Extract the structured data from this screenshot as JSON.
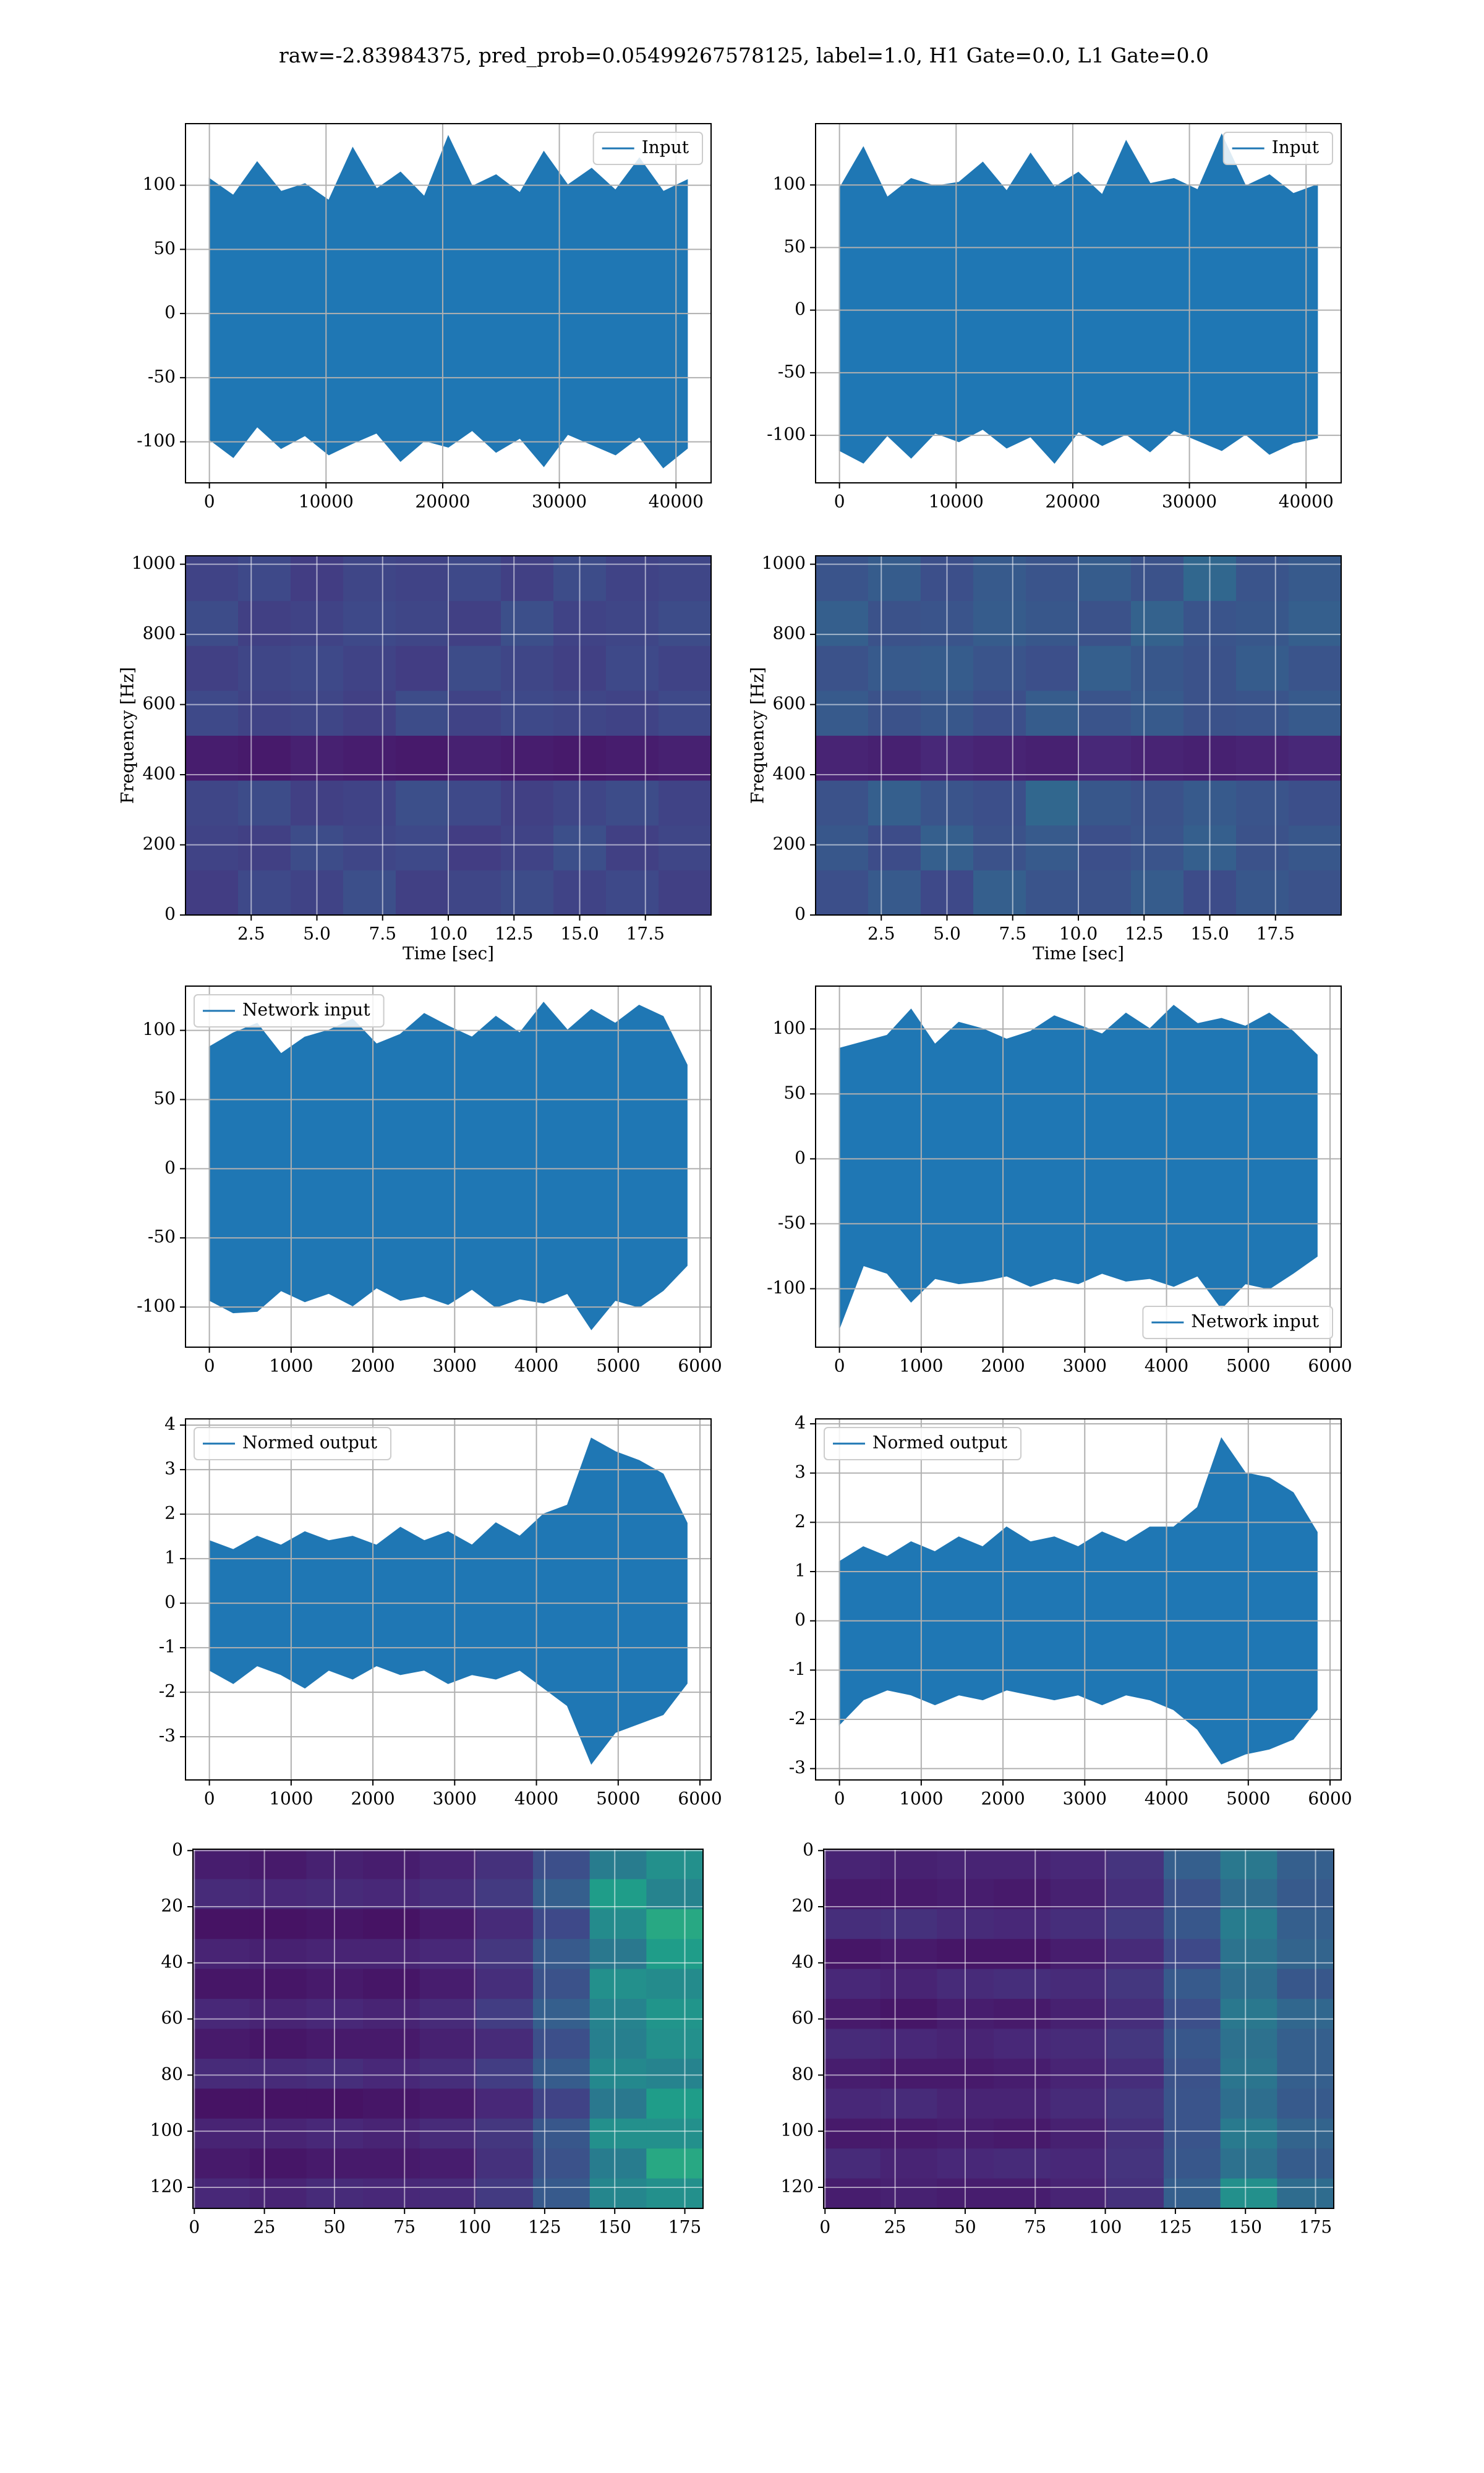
{
  "title": "raw=-2.83984375, pred_prob=0.05499267578125, label=1.0, H1 Gate=0.0, L1 Gate=0.0",
  "chart_data": [
    {
      "type": "band",
      "xlim": [
        -2048,
        43008
      ],
      "ylim": [
        -132,
        148
      ],
      "xticks": [
        0,
        10000,
        20000,
        30000,
        40000
      ],
      "yticks": [
        -100,
        -50,
        0,
        50,
        100
      ],
      "grid": true,
      "legend": "upper right",
      "series": [
        {
          "name": "Input",
          "color": "#1f77b4",
          "x": [
            0,
            2048,
            4096,
            6144,
            8192,
            10240,
            12288,
            14336,
            16384,
            18432,
            20480,
            22528,
            24576,
            26624,
            28672,
            30720,
            32768,
            34816,
            36864,
            38912,
            40960
          ],
          "upper": [
            105,
            92,
            118,
            95,
            101,
            88,
            129,
            97,
            110,
            91,
            138,
            99,
            108,
            94,
            126,
            100,
            113,
            96,
            121,
            95,
            104
          ],
          "lower": [
            -98,
            -112,
            -88,
            -105,
            -95,
            -110,
            -101,
            -93,
            -115,
            -99,
            -104,
            -91,
            -108,
            -97,
            -119,
            -94,
            -102,
            -110,
            -96,
            -120,
            -105
          ]
        }
      ]
    },
    {
      "type": "band",
      "xlim": [
        -2048,
        43008
      ],
      "ylim": [
        -138,
        149
      ],
      "xticks": [
        0,
        10000,
        20000,
        30000,
        40000
      ],
      "yticks": [
        -100,
        -50,
        0,
        50,
        100
      ],
      "grid": true,
      "legend": "upper right",
      "series": [
        {
          "name": "Input",
          "color": "#1f77b4",
          "x": [
            0,
            2048,
            4096,
            6144,
            8192,
            10240,
            12288,
            14336,
            16384,
            18432,
            20480,
            22528,
            24576,
            26624,
            28672,
            30720,
            32768,
            34816,
            36864,
            38912,
            40960
          ],
          "upper": [
            97,
            130,
            90,
            105,
            99,
            102,
            118,
            95,
            125,
            98,
            110,
            92,
            135,
            101,
            105,
            96,
            140,
            99,
            108,
            93,
            100
          ],
          "lower": [
            -112,
            -122,
            -100,
            -118,
            -98,
            -105,
            -95,
            -110,
            -101,
            -122,
            -97,
            -108,
            -99,
            -113,
            -96,
            -104,
            -112,
            -99,
            -115,
            -106,
            -102
          ]
        }
      ]
    },
    {
      "type": "heatmap",
      "origin": "lower",
      "colormap": "viridis",
      "clim": [
        0,
        1
      ],
      "xlim": [
        0,
        20
      ],
      "ylim": [
        0,
        1024
      ],
      "xticks": [
        2.5,
        {
          "value": 5,
          "label": "5.0"
        },
        7.5,
        {
          "value": 10,
          "label": "10.0"
        },
        12.5,
        {
          "value": 15,
          "label": "15.0"
        },
        17.5
      ],
      "yticks": [
        0,
        200,
        400,
        600,
        800,
        1000
      ],
      "grid": true,
      "xlabel": "Time [sec]",
      "ylabel": "Frequency [Hz]",
      "z": [
        [
          0.18,
          0.22,
          0.2,
          0.24,
          0.19,
          0.21,
          0.23,
          0.2,
          0.22,
          0.19
        ],
        [
          0.2,
          0.19,
          0.23,
          0.21,
          0.22,
          0.18,
          0.2,
          0.24,
          0.19,
          0.21
        ],
        [
          0.21,
          0.23,
          0.19,
          0.2,
          0.24,
          0.22,
          0.19,
          0.21,
          0.23,
          0.2
        ],
        [
          0.08,
          0.07,
          0.09,
          0.08,
          0.07,
          0.09,
          0.08,
          0.07,
          0.08,
          0.09
        ],
        [
          0.22,
          0.2,
          0.21,
          0.19,
          0.23,
          0.2,
          0.22,
          0.21,
          0.2,
          0.22
        ],
        [
          0.19,
          0.21,
          0.22,
          0.2,
          0.18,
          0.23,
          0.21,
          0.19,
          0.22,
          0.2
        ],
        [
          0.23,
          0.19,
          0.2,
          0.22,
          0.21,
          0.19,
          0.24,
          0.2,
          0.21,
          0.23
        ],
        [
          0.2,
          0.22,
          0.18,
          0.21,
          0.2,
          0.22,
          0.19,
          0.23,
          0.2,
          0.21
        ]
      ]
    },
    {
      "type": "heatmap",
      "origin": "lower",
      "colormap": "viridis",
      "clim": [
        0,
        1
      ],
      "xlim": [
        0,
        20
      ],
      "ylim": [
        0,
        1024
      ],
      "xticks": [
        2.5,
        {
          "value": 5,
          "label": "5.0"
        },
        7.5,
        {
          "value": 10,
          "label": "10.0"
        },
        12.5,
        {
          "value": 15,
          "label": "15.0"
        },
        17.5
      ],
      "yticks": [
        0,
        200,
        400,
        600,
        800,
        1000
      ],
      "grid": true,
      "xlabel": "Time [sec]",
      "ylabel": "Frequency [Hz]",
      "z": [
        [
          0.24,
          0.28,
          0.22,
          0.3,
          0.26,
          0.25,
          0.29,
          0.23,
          0.27,
          0.25
        ],
        [
          0.27,
          0.23,
          0.3,
          0.25,
          0.28,
          0.24,
          0.26,
          0.3,
          0.25,
          0.27
        ],
        [
          0.25,
          0.3,
          0.26,
          0.24,
          0.33,
          0.27,
          0.25,
          0.28,
          0.26,
          0.24
        ],
        [
          0.1,
          0.09,
          0.11,
          0.1,
          0.09,
          0.11,
          0.1,
          0.09,
          0.1,
          0.11
        ],
        [
          0.28,
          0.25,
          0.27,
          0.24,
          0.29,
          0.26,
          0.28,
          0.25,
          0.26,
          0.28
        ],
        [
          0.25,
          0.28,
          0.29,
          0.26,
          0.24,
          0.3,
          0.27,
          0.25,
          0.29,
          0.26
        ],
        [
          0.3,
          0.25,
          0.26,
          0.29,
          0.27,
          0.25,
          0.31,
          0.26,
          0.27,
          0.3
        ],
        [
          0.26,
          0.29,
          0.24,
          0.28,
          0.26,
          0.29,
          0.25,
          0.33,
          0.26,
          0.28
        ]
      ]
    },
    {
      "type": "band",
      "xlim": [
        -292,
        6136
      ],
      "ylim": [
        -129,
        132
      ],
      "xticks": [
        0,
        1000,
        2000,
        3000,
        4000,
        5000,
        6000
      ],
      "yticks": [
        -100,
        -50,
        0,
        50,
        100
      ],
      "grid": true,
      "legend": "upper left",
      "series": [
        {
          "name": "Network input",
          "color": "#1f77b4",
          "x": [
            0,
            292,
            584,
            876,
            1168,
            1460,
            1752,
            2044,
            2336,
            2628,
            2920,
            3212,
            3504,
            3796,
            4088,
            4380,
            4672,
            4964,
            5256,
            5548,
            5840
          ],
          "upper": [
            88,
            98,
            105,
            83,
            95,
            100,
            108,
            90,
            97,
            112,
            103,
            95,
            110,
            98,
            120,
            100,
            115,
            105,
            118,
            110,
            75
          ],
          "lower": [
            -95,
            -104,
            -103,
            -88,
            -96,
            -90,
            -99,
            -86,
            -95,
            -92,
            -98,
            -87,
            -100,
            -94,
            -97,
            -90,
            -116,
            -95,
            -100,
            -88,
            -70
          ]
        }
      ]
    },
    {
      "type": "band",
      "xlim": [
        -292,
        6136
      ],
      "ylim": [
        -145,
        133
      ],
      "xticks": [
        0,
        1000,
        2000,
        3000,
        4000,
        5000,
        6000
      ],
      "yticks": [
        -100,
        -50,
        0,
        50,
        100
      ],
      "grid": true,
      "legend": "lower right",
      "series": [
        {
          "name": "Network input",
          "color": "#1f77b4",
          "x": [
            0,
            292,
            584,
            876,
            1168,
            1460,
            1752,
            2044,
            2336,
            2628,
            2920,
            3212,
            3504,
            3796,
            4088,
            4380,
            4672,
            4964,
            5256,
            5548,
            5840
          ],
          "upper": [
            85,
            90,
            95,
            115,
            88,
            105,
            100,
            92,
            98,
            110,
            103,
            96,
            112,
            100,
            118,
            104,
            108,
            102,
            112,
            98,
            80
          ],
          "lower": [
            -130,
            -82,
            -88,
            -110,
            -92,
            -96,
            -94,
            -90,
            -98,
            -92,
            -96,
            -88,
            -94,
            -92,
            -98,
            -90,
            -115,
            -96,
            -100,
            -88,
            -75
          ]
        }
      ]
    },
    {
      "type": "band",
      "xlim": [
        -292,
        6136
      ],
      "ylim": [
        -3.97,
        4.14
      ],
      "xticks": [
        0,
        1000,
        2000,
        3000,
        4000,
        5000,
        6000
      ],
      "yticks": [
        -3,
        -2,
        -1,
        0,
        1,
        2,
        3,
        4
      ],
      "grid": true,
      "legend": "upper left",
      "series": [
        {
          "name": "Normed output",
          "color": "#1f77b4",
          "x": [
            0,
            292,
            584,
            876,
            1168,
            1460,
            1752,
            2044,
            2336,
            2628,
            2920,
            3212,
            3504,
            3796,
            4088,
            4380,
            4672,
            4964,
            5256,
            5548,
            5840
          ],
          "upper": [
            1.4,
            1.2,
            1.5,
            1.3,
            1.6,
            1.4,
            1.5,
            1.3,
            1.7,
            1.4,
            1.6,
            1.3,
            1.8,
            1.5,
            2.0,
            2.2,
            3.7,
            3.4,
            3.2,
            2.9,
            1.8
          ],
          "lower": [
            -1.5,
            -1.8,
            -1.4,
            -1.6,
            -1.9,
            -1.5,
            -1.7,
            -1.4,
            -1.6,
            -1.5,
            -1.8,
            -1.6,
            -1.7,
            -1.5,
            -1.9,
            -2.3,
            -3.6,
            -2.9,
            -2.7,
            -2.5,
            -1.8
          ]
        }
      ]
    },
    {
      "type": "band",
      "xlim": [
        -292,
        6136
      ],
      "ylim": [
        -3.23,
        4.1
      ],
      "xticks": [
        0,
        1000,
        2000,
        3000,
        4000,
        5000,
        6000
      ],
      "yticks": [
        -3,
        -2,
        -1,
        0,
        1,
        2,
        3,
        4
      ],
      "grid": true,
      "legend": "upper left",
      "series": [
        {
          "name": "Normed output",
          "color": "#1f77b4",
          "x": [
            0,
            292,
            584,
            876,
            1168,
            1460,
            1752,
            2044,
            2336,
            2628,
            2920,
            3212,
            3504,
            3796,
            4088,
            4380,
            4672,
            4964,
            5256,
            5548,
            5840
          ],
          "upper": [
            1.2,
            1.5,
            1.3,
            1.6,
            1.4,
            1.7,
            1.5,
            1.9,
            1.6,
            1.7,
            1.5,
            1.8,
            1.6,
            1.9,
            1.9,
            2.3,
            3.7,
            3.0,
            2.9,
            2.6,
            1.8
          ],
          "lower": [
            -2.1,
            -1.6,
            -1.4,
            -1.5,
            -1.7,
            -1.5,
            -1.6,
            -1.4,
            -1.5,
            -1.6,
            -1.5,
            -1.7,
            -1.5,
            -1.6,
            -1.8,
            -2.2,
            -2.9,
            -2.7,
            -2.6,
            -2.4,
            -1.8
          ]
        }
      ]
    },
    {
      "type": "heatmap",
      "origin": "upper",
      "colormap": "viridis",
      "clim": [
        0,
        1
      ],
      "xlim": [
        -0.5,
        181.5
      ],
      "ylim": [
        127.5,
        -0.5
      ],
      "xticks": [
        0,
        25,
        50,
        75,
        100,
        125,
        150,
        175
      ],
      "yticks": [
        0,
        20,
        40,
        60,
        80,
        100,
        120
      ],
      "grid": true,
      "z": [
        [
          0.08,
          0.07,
          0.09,
          0.08,
          0.1,
          0.14,
          0.24,
          0.42,
          0.5
        ],
        [
          0.12,
          0.11,
          0.12,
          0.11,
          0.13,
          0.17,
          0.3,
          0.55,
          0.45
        ],
        [
          0.05,
          0.05,
          0.06,
          0.05,
          0.07,
          0.12,
          0.22,
          0.48,
          0.6
        ],
        [
          0.1,
          0.09,
          0.1,
          0.1,
          0.11,
          0.16,
          0.28,
          0.4,
          0.55
        ],
        [
          0.06,
          0.06,
          0.07,
          0.06,
          0.08,
          0.13,
          0.25,
          0.5,
          0.48
        ],
        [
          0.11,
          0.1,
          0.11,
          0.1,
          0.12,
          0.18,
          0.3,
          0.45,
          0.52
        ],
        [
          0.07,
          0.06,
          0.07,
          0.07,
          0.09,
          0.12,
          0.24,
          0.43,
          0.5
        ],
        [
          0.12,
          0.12,
          0.13,
          0.11,
          0.13,
          0.18,
          0.29,
          0.47,
          0.45
        ],
        [
          0.05,
          0.05,
          0.05,
          0.06,
          0.07,
          0.11,
          0.2,
          0.4,
          0.55
        ],
        [
          0.1,
          0.1,
          0.11,
          0.1,
          0.12,
          0.16,
          0.27,
          0.5,
          0.5
        ],
        [
          0.07,
          0.06,
          0.07,
          0.07,
          0.08,
          0.14,
          0.25,
          0.42,
          0.6
        ],
        [
          0.11,
          0.1,
          0.12,
          0.11,
          0.12,
          0.17,
          0.28,
          0.46,
          0.5
        ]
      ]
    },
    {
      "type": "heatmap",
      "origin": "upper",
      "colormap": "viridis",
      "clim": [
        0,
        1
      ],
      "xlim": [
        -0.5,
        181.5
      ],
      "ylim": [
        127.5,
        -0.5
      ],
      "xticks": [
        0,
        25,
        50,
        75,
        100,
        125,
        150,
        175
      ],
      "yticks": [
        0,
        20,
        40,
        60,
        80,
        100,
        120
      ],
      "grid": true,
      "z": [
        [
          0.1,
          0.09,
          0.1,
          0.1,
          0.11,
          0.15,
          0.3,
          0.4,
          0.3
        ],
        [
          0.07,
          0.07,
          0.08,
          0.07,
          0.09,
          0.13,
          0.25,
          0.35,
          0.28
        ],
        [
          0.13,
          0.14,
          0.12,
          0.11,
          0.13,
          0.17,
          0.27,
          0.42,
          0.3
        ],
        [
          0.06,
          0.07,
          0.06,
          0.06,
          0.08,
          0.12,
          0.22,
          0.38,
          0.32
        ],
        [
          0.11,
          0.1,
          0.12,
          0.13,
          0.12,
          0.16,
          0.28,
          0.36,
          0.27
        ],
        [
          0.07,
          0.06,
          0.08,
          0.07,
          0.09,
          0.13,
          0.24,
          0.4,
          0.33
        ],
        [
          0.12,
          0.11,
          0.1,
          0.11,
          0.12,
          0.16,
          0.27,
          0.37,
          0.3
        ],
        [
          0.08,
          0.07,
          0.07,
          0.08,
          0.1,
          0.13,
          0.25,
          0.39,
          0.3
        ],
        [
          0.11,
          0.12,
          0.1,
          0.1,
          0.12,
          0.16,
          0.26,
          0.36,
          0.28
        ],
        [
          0.07,
          0.07,
          0.08,
          0.07,
          0.09,
          0.14,
          0.26,
          0.41,
          0.32
        ],
        [
          0.12,
          0.1,
          0.11,
          0.12,
          0.11,
          0.15,
          0.27,
          0.37,
          0.29
        ],
        [
          0.08,
          0.09,
          0.08,
          0.08,
          0.1,
          0.14,
          0.3,
          0.5,
          0.35
        ]
      ]
    }
  ]
}
